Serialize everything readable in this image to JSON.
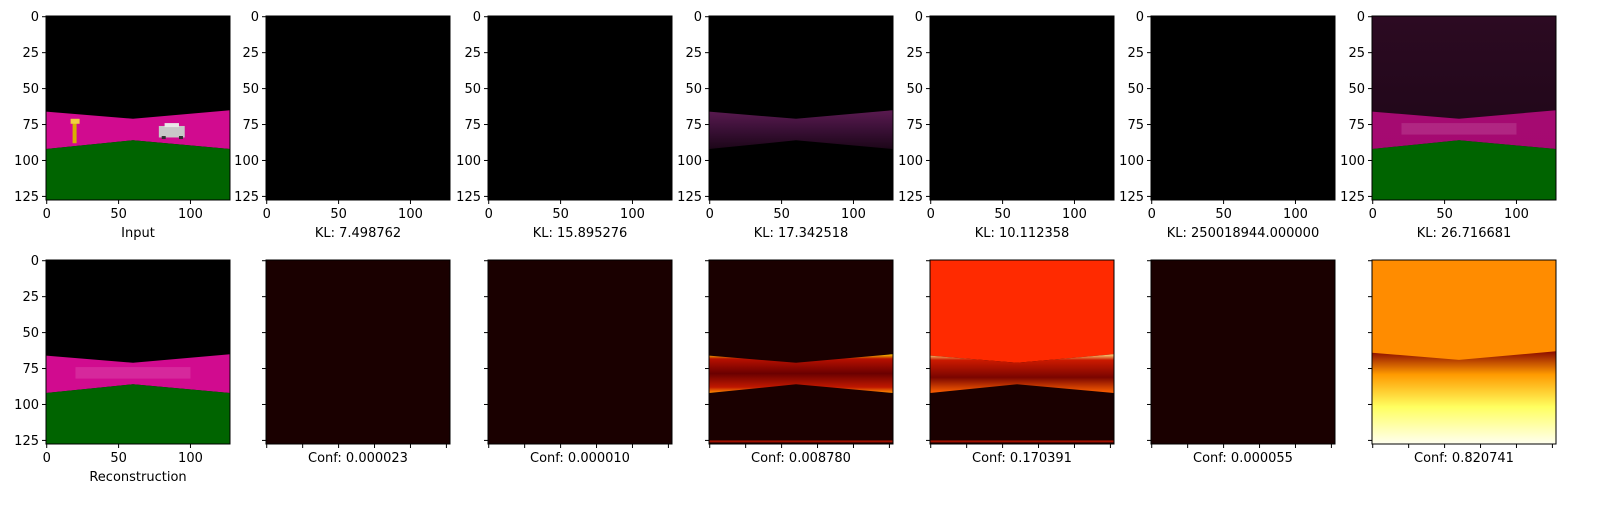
{
  "chart_data": {
    "type": "image_grid",
    "pixel_range": [
      0,
      127
    ],
    "tick_values": [
      0,
      25,
      50,
      75,
      100,
      125
    ],
    "x_tick_values": [
      0,
      50,
      100
    ],
    "top_row": [
      {
        "kind": "input",
        "caption": "Input"
      },
      {
        "kind": "dark",
        "caption": "KL: 7.498762",
        "kl": 7.498762
      },
      {
        "kind": "dark",
        "caption": "KL: 15.895276",
        "kl": 15.895276
      },
      {
        "kind": "faint",
        "caption": "KL: 17.342518",
        "kl": 17.342518
      },
      {
        "kind": "dark",
        "caption": "KL: 10.112358",
        "kl": 10.112358
      },
      {
        "kind": "dark",
        "caption": "KL: 250018944.000000",
        "kl": 250018944.0
      },
      {
        "kind": "recon_purple",
        "caption": "KL: 26.716681",
        "kl": 26.716681
      }
    ],
    "bottom_row": [
      {
        "kind": "recon",
        "caption": "Reconstruction"
      },
      {
        "kind": "heat_dark",
        "caption": "Conf: 0.000023",
        "conf": 2.3e-05
      },
      {
        "kind": "heat_dark",
        "caption": "Conf: 0.000010",
        "conf": 1e-05
      },
      {
        "kind": "heat_band",
        "caption": "Conf: 0.008780",
        "conf": 0.00878
      },
      {
        "kind": "heat_red",
        "caption": "Conf: 0.170391",
        "conf": 0.170391
      },
      {
        "kind": "heat_dark",
        "caption": "Conf: 0.000055",
        "conf": 5.5e-05
      },
      {
        "kind": "heat_orange",
        "caption": "Conf: 0.820741",
        "conf": 0.820741
      }
    ],
    "colors": {
      "sky": "#000000",
      "road_magenta": "#d10b8f",
      "grass_green": "#006400",
      "heat_dark": "#1a0000",
      "heat_red": "#ff2a00",
      "heat_orange": "#ff8c00",
      "heat_yellow": "#ffff40",
      "heat_white": "#fffff0"
    }
  }
}
